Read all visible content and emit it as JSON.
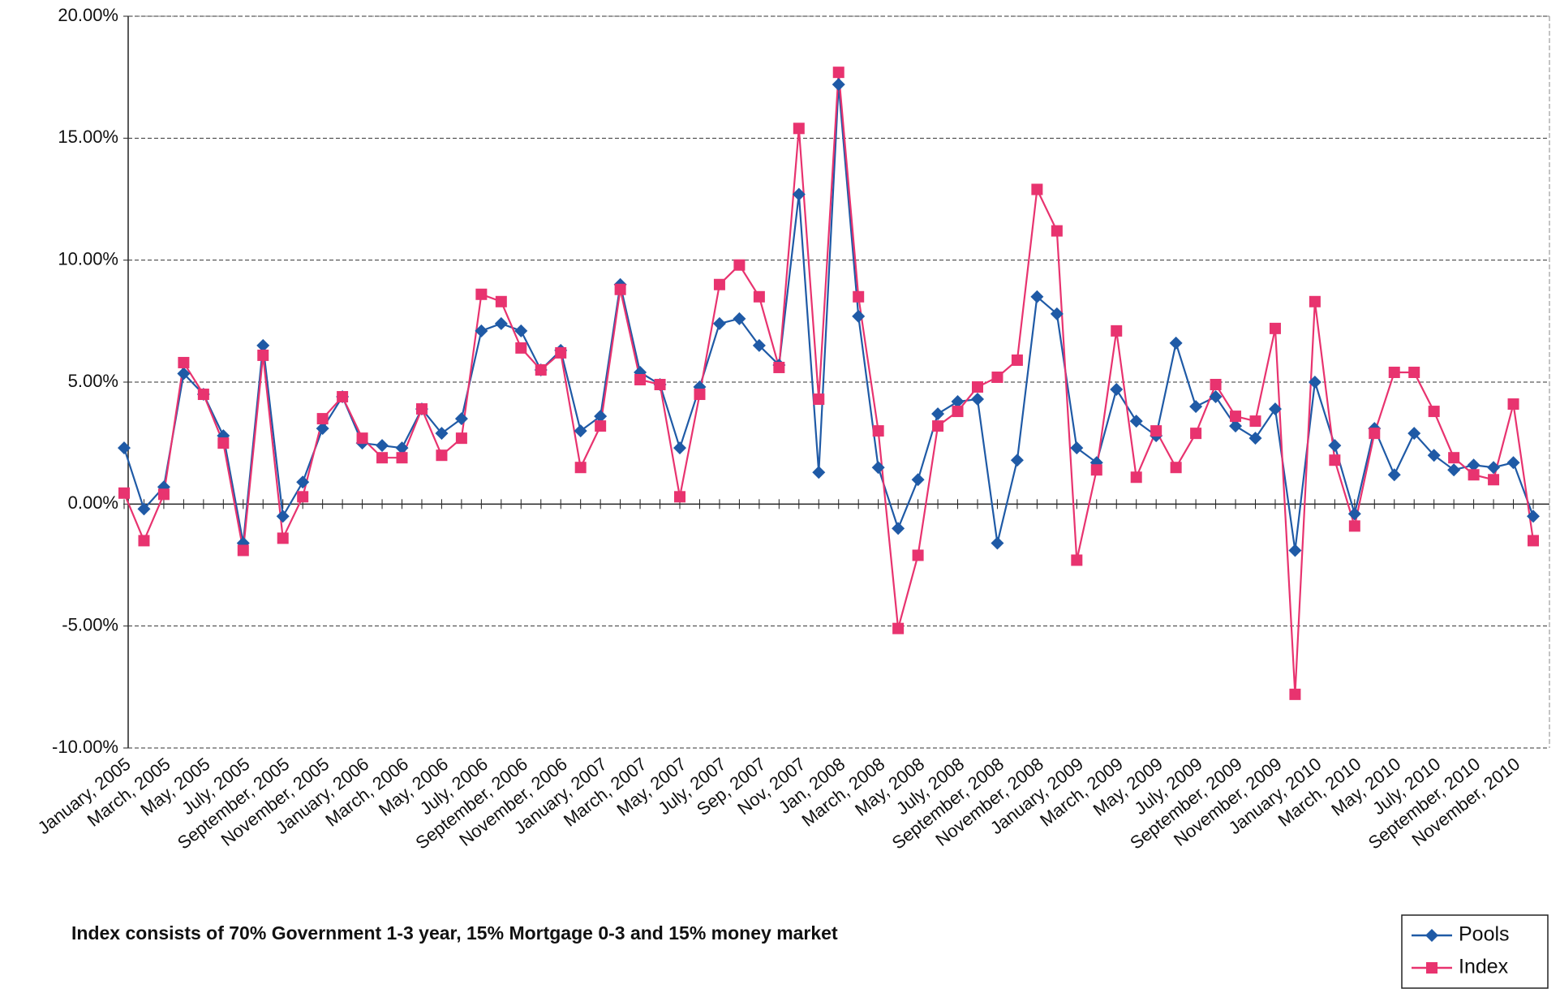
{
  "chart_data": {
    "type": "line",
    "annotation": "Index consists of 70% Government 1-3 year, 15% Mortgage 0-3 and 15% money market",
    "categories": [
      "January, 2005",
      null,
      "March, 2005",
      null,
      "May, 2005",
      null,
      "July, 2005",
      null,
      "September, 2005",
      null,
      "November, 2005",
      null,
      "January, 2006",
      null,
      "March, 2006",
      null,
      "May, 2006",
      null,
      "July, 2006",
      null,
      "September, 2006",
      null,
      "November, 2006",
      null,
      "January, 2007",
      null,
      "March, 2007",
      null,
      "May, 2007",
      null,
      "July, 2007",
      null,
      "Sep, 2007",
      null,
      "Nov, 2007",
      null,
      "Jan, 2008",
      null,
      "March, 2008",
      null,
      "May, 2008",
      null,
      "July, 2008",
      null,
      "September, 2008",
      null,
      "November, 2008",
      null,
      "January, 2009",
      null,
      "March, 2009",
      null,
      "May, 2009",
      null,
      "July, 2009",
      null,
      "September, 2009",
      null,
      "November, 2009",
      null,
      "January, 2010",
      null,
      "March, 2010",
      null,
      "May, 2010",
      null,
      "July, 2010",
      null,
      "September, 2010",
      null,
      "November, 2010",
      null
    ],
    "series": [
      {
        "name": "Pools",
        "color": "#1f5aa6",
        "marker": "diamond",
        "values": [
          2.3,
          -0.2,
          0.7,
          5.35,
          4.5,
          2.8,
          -1.6,
          6.5,
          -0.5,
          0.9,
          3.1,
          4.4,
          2.5,
          2.4,
          2.3,
          3.9,
          2.9,
          3.5,
          7.1,
          7.4,
          7.1,
          5.5,
          6.3,
          3.0,
          3.6,
          9.0,
          5.4,
          4.9,
          2.3,
          4.8,
          7.4,
          7.6,
          6.5,
          5.7,
          12.7,
          1.3,
          17.2,
          7.7,
          1.5,
          -1.0,
          1.0,
          3.7,
          4.2,
          4.3,
          -1.6,
          1.8,
          8.5,
          7.8,
          2.3,
          1.7,
          4.7,
          3.4,
          2.8,
          6.6,
          4.0,
          4.4,
          3.2,
          2.7,
          3.9,
          -1.9,
          5.0,
          2.4,
          -0.4,
          3.1,
          1.2,
          2.9,
          2.0,
          1.4,
          1.6,
          1.5,
          1.7,
          -0.5
        ]
      },
      {
        "name": "Index",
        "color": "#e8336f",
        "marker": "square",
        "values": [
          0.45,
          -1.5,
          0.4,
          5.8,
          4.5,
          2.5,
          -1.9,
          6.1,
          -1.4,
          0.3,
          3.5,
          4.4,
          2.7,
          1.9,
          1.9,
          3.9,
          2.0,
          2.7,
          8.6,
          8.3,
          6.4,
          5.5,
          6.2,
          1.5,
          3.2,
          8.8,
          5.1,
          4.9,
          0.3,
          4.5,
          9.0,
          9.8,
          8.5,
          5.6,
          15.4,
          4.3,
          17.7,
          8.5,
          3.0,
          -5.1,
          -2.1,
          3.2,
          3.8,
          4.8,
          5.2,
          5.9,
          12.9,
          11.2,
          -2.3,
          1.4,
          7.1,
          1.1,
          3.0,
          1.5,
          2.9,
          4.9,
          3.6,
          3.4,
          7.2,
          -7.8,
          8.3,
          1.8,
          -0.9,
          2.9,
          5.4,
          5.4,
          3.8,
          1.9,
          1.2,
          1.0,
          4.1,
          -1.5
        ]
      }
    ],
    "ylim": [
      -10,
      20
    ],
    "yticks": [
      {
        "value": -10,
        "label": "-10.00%"
      },
      {
        "value": -5,
        "label": "-5.00%"
      },
      {
        "value": 0,
        "label": "0.00%"
      },
      {
        "value": 5,
        "label": "5.00%"
      },
      {
        "value": 10,
        "label": "10.00%"
      },
      {
        "value": 15,
        "label": "15.00%"
      },
      {
        "value": 20,
        "label": "20.00%"
      }
    ],
    "grid": true,
    "legend": "bottom-right"
  }
}
